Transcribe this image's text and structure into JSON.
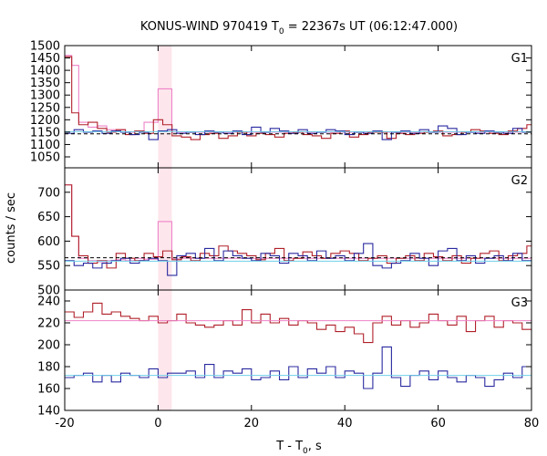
{
  "chart_data": {
    "type": "line",
    "title": {
      "pre": "KONUS-WIND 970419 T",
      "sub": "0",
      "post": " = 22367s UT (06:12:47.000)"
    },
    "xlabel": {
      "pre": "T - T",
      "sub": "0",
      "post": ", s"
    },
    "ylabel": "counts / sec",
    "xlim": [
      -20,
      80
    ],
    "xticks": [
      "-20",
      "0",
      "20",
      "40",
      "60",
      "80"
    ],
    "highlight_span": [
      0,
      2.944
    ],
    "colors": {
      "red": "#b0202a",
      "pink": "#ee82c8",
      "blue": "#2a2aa0",
      "cyan": "#6fcfe8",
      "band": "#fde6ec",
      "dash": "#000000"
    },
    "panels": [
      {
        "name": "G1",
        "ylim": [
          1050,
          1500
        ],
        "yticks": [
          "1500",
          "1450",
          "1400",
          "1350",
          "1300",
          "1250",
          "1200",
          "1150",
          "1100",
          "1050"
        ],
        "dashed_level": 1143,
        "series": [
          {
            "color": "pink",
            "step_x": [
              -20,
              -18.5,
              -17,
              -15,
              -13,
              -11,
              -9,
              -7,
              -5,
              -3,
              0,
              2.944,
              80
            ],
            "values": [
              1460,
              1420,
              1190,
              1170,
              1175,
              1160,
              1160,
              1150,
              1155,
              1190,
              1325,
              1150
            ]
          },
          {
            "color": "red",
            "step_x": [
              -20,
              -18.5,
              -17,
              -15,
              -13,
              -11,
              -9,
              -7,
              -5,
              -3,
              -1,
              1,
              3,
              5,
              7,
              9,
              11,
              13,
              15,
              17,
              19,
              21,
              23,
              25,
              27,
              29,
              31,
              33,
              35,
              37,
              39,
              41,
              43,
              45,
              47,
              49,
              51,
              53,
              55,
              57,
              59,
              61,
              63,
              65,
              67,
              69,
              71,
              73,
              75,
              77,
              79,
              80
            ],
            "values": [
              1455,
              1228,
              1180,
              1190,
              1165,
              1150,
              1160,
              1140,
              1155,
              1145,
              1200,
              1180,
              1135,
              1130,
              1120,
              1140,
              1145,
              1125,
              1135,
              1150,
              1135,
              1145,
              1140,
              1130,
              1145,
              1150,
              1140,
              1135,
              1125,
              1145,
              1155,
              1130,
              1140,
              1150,
              1150,
              1125,
              1145,
              1140,
              1145,
              1150,
              1155,
              1135,
              1140,
              1150,
              1160,
              1155,
              1145,
              1140,
              1155,
              1165,
              1180
            ]
          },
          {
            "color": "blue",
            "step_x": [
              -20,
              -18,
              -16,
              -14,
              -12,
              -10,
              -8,
              -6,
              -4,
              -2,
              0,
              2,
              4,
              6,
              8,
              10,
              12,
              14,
              16,
              18,
              20,
              22,
              24,
              26,
              28,
              30,
              32,
              34,
              36,
              38,
              40,
              42,
              44,
              46,
              48,
              50,
              52,
              54,
              56,
              58,
              60,
              62,
              64,
              66,
              68,
              70,
              72,
              74,
              76,
              78,
              80
            ],
            "values": [
              1145,
              1160,
              1150,
              1155,
              1145,
              1155,
              1150,
              1140,
              1150,
              1120,
              1155,
              1160,
              1145,
              1150,
              1140,
              1155,
              1150,
              1145,
              1155,
              1140,
              1170,
              1150,
              1165,
              1155,
              1145,
              1160,
              1145,
              1150,
              1160,
              1155,
              1140,
              1150,
              1145,
              1155,
              1120,
              1150,
              1155,
              1145,
              1160,
              1150,
              1175,
              1165,
              1140,
              1150,
              1145,
              1155,
              1150,
              1145,
              1165,
              1150
            ]
          },
          {
            "color": "cyan",
            "level": 1152
          }
        ]
      },
      {
        "name": "G2",
        "ylim": [
          500,
          750
        ],
        "yticks": [
          "700",
          "650",
          "600",
          "550",
          "500"
        ],
        "dashed_level": 566,
        "series": [
          {
            "color": "pink",
            "step_x": [
              -20,
              -18.5,
              -17,
              -15,
              -13,
              -11,
              -9,
              -7,
              -5,
              -3,
              0,
              2.944,
              80
            ],
            "values": [
              715,
              610,
              565,
              560,
              558,
              560,
              562,
              560,
              565,
              563,
              640,
              565
            ]
          },
          {
            "color": "red",
            "step_x": [
              -20,
              -18.5,
              -17,
              -15,
              -13,
              -11,
              -9,
              -7,
              -5,
              -3,
              -1,
              1,
              3,
              5,
              7,
              9,
              11,
              13,
              15,
              17,
              19,
              21,
              23,
              25,
              27,
              29,
              31,
              33,
              35,
              37,
              39,
              41,
              43,
              45,
              47,
              49,
              51,
              53,
              55,
              57,
              59,
              61,
              63,
              65,
              67,
              69,
              71,
              73,
              75,
              77,
              79,
              80
            ],
            "values": [
              715,
              610,
              570,
              555,
              560,
              545,
              575,
              565,
              560,
              575,
              568,
              580,
              562,
              568,
              560,
              575,
              570,
              590,
              580,
              575,
              570,
              562,
              575,
              585,
              560,
              565,
              578,
              570,
              565,
              575,
              580,
              575,
              560,
              565,
              570,
              555,
              565,
              570,
              560,
              575,
              568,
              560,
              570,
              555,
              565,
              575,
              580,
              560,
              570,
              575,
              590
            ]
          },
          {
            "color": "blue",
            "step_x": [
              -20,
              -18,
              -16,
              -14,
              -12,
              -10,
              -8,
              -6,
              -4,
              -2,
              0,
              2,
              4,
              6,
              8,
              10,
              12,
              14,
              16,
              18,
              20,
              22,
              24,
              26,
              28,
              30,
              32,
              34,
              36,
              38,
              40,
              42,
              44,
              46,
              48,
              50,
              52,
              54,
              56,
              58,
              60,
              62,
              64,
              66,
              68,
              70,
              72,
              74,
              76,
              78,
              80
            ],
            "values": [
              560,
              550,
              555,
              545,
              555,
              560,
              565,
              555,
              560,
              565,
              560,
              530,
              570,
              575,
              565,
              585,
              560,
              580,
              570,
              565,
              560,
              575,
              570,
              555,
              575,
              570,
              560,
              580,
              565,
              570,
              560,
              575,
              595,
              550,
              545,
              555,
              560,
              575,
              565,
              550,
              580,
              585,
              560,
              570,
              555,
              565,
              570,
              560,
              575,
              560
            ]
          },
          {
            "color": "cyan",
            "level": 559
          }
        ]
      },
      {
        "name": "G3",
        "ylim": [
          140,
          250
        ],
        "yticks": [
          "240",
          "220",
          "200",
          "180",
          "160",
          "140"
        ],
        "series": [
          {
            "color": "red",
            "step_x": [
              -20,
              -18,
              -16,
              -14,
              -12,
              -10,
              -8,
              -6,
              -4,
              -2,
              0,
              2,
              4,
              6,
              8,
              10,
              12,
              14,
              16,
              18,
              20,
              22,
              24,
              26,
              28,
              30,
              32,
              34,
              36,
              38,
              40,
              42,
              44,
              46,
              48,
              50,
              52,
              54,
              56,
              58,
              60,
              62,
              64,
              66,
              68,
              70,
              72,
              74,
              76,
              78,
              80
            ],
            "values": [
              230,
              225,
              230,
              238,
              228,
              230,
              226,
              224,
              222,
              226,
              220,
              222,
              228,
              220,
              218,
              216,
              218,
              222,
              218,
              232,
              220,
              228,
              220,
              224,
              218,
              222,
              220,
              214,
              218,
              212,
              216,
              210,
              202,
              220,
              226,
              218,
              222,
              216,
              220,
              228,
              222,
              218,
              226,
              212,
              222,
              226,
              216,
              222,
              220,
              214,
              212
            ]
          },
          {
            "color": "blue",
            "step_x": [
              -20,
              -18,
              -16,
              -14,
              -12,
              -10,
              -8,
              -6,
              -4,
              -2,
              0,
              2,
              4,
              6,
              8,
              10,
              12,
              14,
              16,
              18,
              20,
              22,
              24,
              26,
              28,
              30,
              32,
              34,
              36,
              38,
              40,
              42,
              44,
              46,
              48,
              50,
              52,
              54,
              56,
              58,
              60,
              62,
              64,
              66,
              68,
              70,
              72,
              74,
              76,
              78,
              80
            ],
            "values": [
              170,
              172,
              174,
              166,
              172,
              166,
              174,
              172,
              170,
              178,
              170,
              174,
              174,
              176,
              170,
              182,
              170,
              176,
              174,
              178,
              168,
              170,
              176,
              168,
              180,
              170,
              178,
              174,
              180,
              170,
              176,
              174,
              160,
              174,
              198,
              170,
              162,
              172,
              176,
              168,
              176,
              170,
              166,
              172,
              170,
              162,
              168,
              174,
              170,
              180,
              178
            ]
          },
          {
            "color": "pink",
            "level": 222
          },
          {
            "color": "cyan",
            "level": 172
          }
        ]
      }
    ]
  }
}
